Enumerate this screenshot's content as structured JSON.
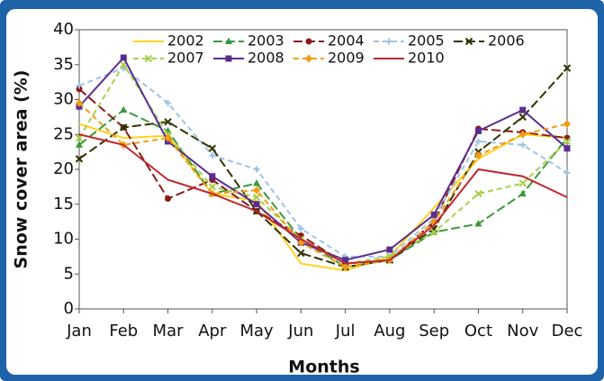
{
  "chart_data": {
    "type": "line",
    "x_label": "Months",
    "y_label": "Snow cover area (%)",
    "categories": [
      "Jan",
      "Feb",
      "Mar",
      "Apr",
      "May",
      "Jun",
      "Jul",
      "Aug",
      "Sep",
      "Oct",
      "Nov",
      "Dec"
    ],
    "ylim": [
      0,
      40
    ],
    "yticks": [
      0,
      5,
      10,
      15,
      20,
      25,
      30,
      35,
      40
    ],
    "legend": "top",
    "series": [
      {
        "name": "2002",
        "color": "#ffd21f",
        "marker": "none",
        "dash": "solid",
        "values": [
          26.5,
          24.5,
          24.8,
          16.5,
          15.5,
          6.5,
          5.5,
          7.5,
          14.5,
          21.5,
          25,
          24.5
        ]
      },
      {
        "name": "2003",
        "color": "#3a9a3a",
        "marker": "triangle",
        "dash": "long",
        "values": [
          23.5,
          28.5,
          25.5,
          16.5,
          18,
          10,
          6,
          7,
          11,
          12.2,
          16.5,
          24.5
        ]
      },
      {
        "name": "2004",
        "color": "#8b1a1a",
        "marker": "circle",
        "dash": "long",
        "values": [
          31.5,
          26,
          15.8,
          18.5,
          14,
          10.5,
          6.5,
          7,
          12.5,
          25.8,
          25.3,
          24.5
        ]
      },
      {
        "name": "2005",
        "color": "#9dc3e6",
        "marker": "plus",
        "dash": "dash",
        "values": [
          32,
          34.5,
          29.5,
          22,
          20,
          11.5,
          7.5,
          7.5,
          13,
          24,
          23.5,
          19.5
        ]
      },
      {
        "name": "2006",
        "color": "#333300",
        "marker": "x",
        "dash": "long",
        "values": [
          21.5,
          26,
          26.8,
          23,
          14,
          8,
          6,
          7,
          11.5,
          22.5,
          27.5,
          34.5
        ]
      },
      {
        "name": "2007",
        "color": "#a8d04a",
        "marker": "x",
        "dash": "dash",
        "values": [
          24.5,
          35,
          25,
          17.5,
          16,
          10,
          6.5,
          7.5,
          11,
          16.5,
          18,
          24
        ]
      },
      {
        "name": "2008",
        "color": "#5b2c8f",
        "marker": "square",
        "dash": "solid",
        "values": [
          29,
          36,
          24,
          19,
          15,
          9.5,
          7,
          8.5,
          13.5,
          25.5,
          28.5,
          23
        ]
      },
      {
        "name": "2009",
        "color": "#f39c12",
        "marker": "diamond",
        "dash": "dash",
        "values": [
          29.5,
          23.5,
          24.5,
          16.5,
          17,
          9.5,
          6,
          7,
          12.5,
          22,
          25,
          26.5
        ]
      },
      {
        "name": "2010",
        "color": "#c0282d",
        "marker": "none",
        "dash": "solid",
        "values": [
          25,
          23.5,
          18.5,
          16.5,
          14,
          10,
          6.5,
          7,
          12,
          20,
          19,
          16
        ]
      }
    ]
  }
}
